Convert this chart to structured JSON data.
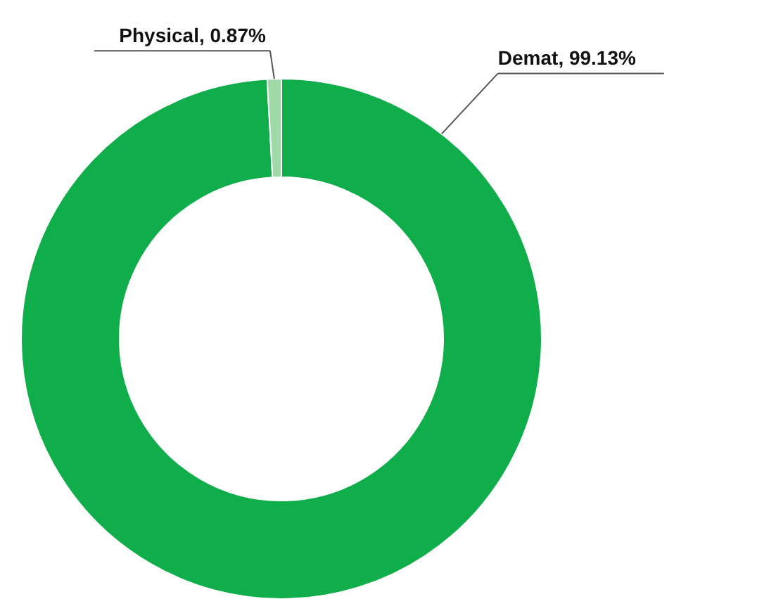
{
  "chart_data": {
    "type": "donut",
    "categories": [
      "Demat",
      "Physical"
    ],
    "values": [
      99.13,
      0.87
    ],
    "colors": [
      "#0fae4b",
      "#9fd9a7"
    ],
    "value_labels": [
      "99.13%",
      "0.87%"
    ]
  }
}
